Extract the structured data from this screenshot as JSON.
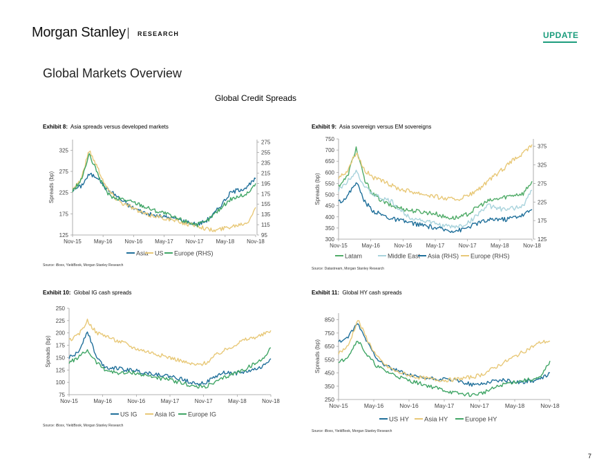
{
  "header": {
    "brand": "Morgan Stanley",
    "research_label": "RESEARCH",
    "update_label": "UPDATE"
  },
  "page_title": "Global Markets Overview",
  "section_title": "Global Credit Spreads",
  "page_number": "7",
  "colors": {
    "accent": "#1b9c7c",
    "asia": "#1f6f9a",
    "us": "#e8c877",
    "europe": "#3fa565",
    "latam": "#4fab67",
    "middle_east": "#a8d3dc"
  },
  "exhibits": [
    {
      "label": "Exhibit 8:",
      "title": "Asia spreads versus developed markets",
      "source": "Source: iBoxx, YieldBook, Morgan Stanley Research"
    },
    {
      "label": "Exhibit 9:",
      "title": "Asia sovereign versus EM sovereigns",
      "source": "Source: Datastream, Morgan Stanley Research"
    },
    {
      "label": "Exhibit 10:",
      "title": "Global IG cash spreads",
      "source": "Source: iBoxx, YieldBook, Morgan Stanley Research"
    },
    {
      "label": "Exhibit 11:",
      "title": "Global HY cash spreads",
      "source": "Source: iBoxx, YieldBook, Morgan Stanley Research"
    }
  ],
  "chart_data": [
    {
      "type": "line",
      "ylabel": "Spreads (bp)",
      "x_ticks": [
        "Nov-15",
        "May-16",
        "Nov-16",
        "May-17",
        "Nov-17",
        "May-18",
        "Nov-18"
      ],
      "ylim": [
        125,
        350
      ],
      "yticks": [
        125,
        175,
        225,
        275,
        325
      ],
      "y2lim": [
        95,
        280
      ],
      "y2ticks": [
        95,
        115,
        135,
        155,
        175,
        195,
        215,
        235,
        255,
        275
      ],
      "legend_position": "bottom",
      "series": [
        {
          "name": "Asia",
          "axis": "left",
          "color": "#1f6f9a",
          "values": [
            232,
            240,
            268,
            262,
            235,
            222,
            205,
            192,
            183,
            175,
            170,
            168,
            165,
            160,
            155,
            150,
            158,
            175,
            200,
            225,
            232,
            238,
            258
          ]
        },
        {
          "name": "US",
          "axis": "left",
          "color": "#e8c877",
          "values": [
            235,
            255,
            325,
            285,
            240,
            215,
            200,
            192,
            180,
            172,
            170,
            165,
            160,
            155,
            150,
            148,
            140,
            135,
            140,
            145,
            150,
            155,
            190
          ]
        },
        {
          "name": "Europe (RHS)",
          "axis": "right",
          "color": "#3fa565",
          "values": [
            180,
            200,
            250,
            215,
            180,
            165,
            165,
            160,
            155,
            148,
            142,
            138,
            130,
            125,
            120,
            115,
            120,
            135,
            150,
            165,
            170,
            175,
            195
          ]
        }
      ]
    },
    {
      "type": "line",
      "ylabel": "Spreads (bp)",
      "x_ticks": [
        "Nov-15",
        "May-16",
        "Nov-16",
        "May-17",
        "Nov-17",
        "May-18",
        "Nov-18"
      ],
      "ylim": [
        300,
        750
      ],
      "yticks": [
        300,
        350,
        400,
        450,
        500,
        550,
        600,
        650,
        700,
        750
      ],
      "y2lim": [
        125,
        395
      ],
      "y2ticks": [
        125,
        175,
        225,
        275,
        325,
        375
      ],
      "legend_position": "bottom",
      "series": [
        {
          "name": "Latam",
          "axis": "left",
          "color": "#4fab67",
          "values": [
            540,
            580,
            710,
            560,
            500,
            470,
            450,
            440,
            430,
            425,
            420,
            415,
            400,
            395,
            400,
            420,
            450,
            470,
            480,
            490,
            500,
            505,
            560
          ]
        },
        {
          "name": "Middle East",
          "axis": "left",
          "color": "#a8d3dc",
          "values": [
            520,
            560,
            610,
            530,
            500,
            480,
            470,
            430,
            400,
            390,
            380,
            370,
            360,
            355,
            360,
            380,
            420,
            450,
            440,
            430,
            440,
            450,
            520
          ]
        },
        {
          "name": "Asia (RHS)",
          "axis": "right",
          "color": "#1f6f9a",
          "values": [
            225,
            240,
            280,
            225,
            200,
            190,
            180,
            175,
            170,
            165,
            160,
            155,
            150,
            148,
            150,
            160,
            170,
            175,
            180,
            178,
            185,
            190,
            205
          ]
        },
        {
          "name": "Europe (RHS)",
          "axis": "right",
          "color": "#e8c877",
          "values": [
            290,
            310,
            360,
            310,
            290,
            280,
            270,
            260,
            255,
            250,
            245,
            240,
            235,
            232,
            235,
            245,
            260,
            280,
            300,
            320,
            340,
            355,
            380
          ]
        }
      ]
    },
    {
      "type": "line",
      "ylabel": "Spreads (bp)",
      "x_ticks": [
        "Nov-15",
        "May-16",
        "Nov-16",
        "May-17",
        "Nov-17",
        "May-18",
        "Nov-18"
      ],
      "ylim": [
        75,
        250
      ],
      "yticks": [
        75,
        100,
        125,
        150,
        175,
        200,
        225,
        250
      ],
      "legend_position": "bottom",
      "series": [
        {
          "name": "US IG",
          "color": "#1f6f9a",
          "values": [
            150,
            160,
            205,
            150,
            130,
            130,
            125,
            125,
            120,
            118,
            115,
            112,
            108,
            102,
            98,
            100,
            112,
            120,
            118,
            120,
            125,
            130,
            148
          ]
        },
        {
          "name": "Asia IG",
          "color": "#e8c877",
          "values": [
            185,
            195,
            225,
            200,
            195,
            185,
            180,
            170,
            165,
            160,
            155,
            150,
            145,
            138,
            135,
            140,
            155,
            165,
            175,
            185,
            190,
            195,
            205
          ]
        },
        {
          "name": "Europe IG",
          "color": "#3fa565",
          "values": [
            140,
            150,
            165,
            140,
            125,
            120,
            118,
            120,
            115,
            112,
            108,
            105,
            100,
            95,
            90,
            92,
            100,
            110,
            118,
            125,
            135,
            145,
            170
          ]
        }
      ]
    },
    {
      "type": "line",
      "ylabel": "Spreads (bp)",
      "x_ticks": [
        "Nov-15",
        "May-16",
        "Nov-16",
        "May-17",
        "Nov-17",
        "May-18",
        "Nov-18"
      ],
      "ylim": [
        250,
        900
      ],
      "yticks": [
        250,
        350,
        450,
        550,
        650,
        750,
        850
      ],
      "legend_position": "bottom",
      "series": [
        {
          "name": "US HY",
          "color": "#1f6f9a",
          "values": [
            680,
            720,
            820,
            680,
            560,
            500,
            470,
            440,
            420,
            410,
            405,
            400,
            395,
            380,
            360,
            370,
            390,
            395,
            385,
            380,
            390,
            400,
            450
          ]
        },
        {
          "name": "Asia HY",
          "color": "#e8c877",
          "values": [
            600,
            650,
            850,
            700,
            570,
            500,
            460,
            440,
            420,
            410,
            400,
            395,
            400,
            410,
            420,
            440,
            480,
            520,
            560,
            600,
            640,
            680,
            690
          ]
        },
        {
          "name": "Europe HY",
          "color": "#3fa565",
          "values": [
            520,
            580,
            700,
            580,
            500,
            460,
            430,
            400,
            380,
            360,
            340,
            320,
            300,
            290,
            285,
            300,
            330,
            360,
            380,
            390,
            400,
            410,
            540
          ]
        }
      ]
    }
  ]
}
